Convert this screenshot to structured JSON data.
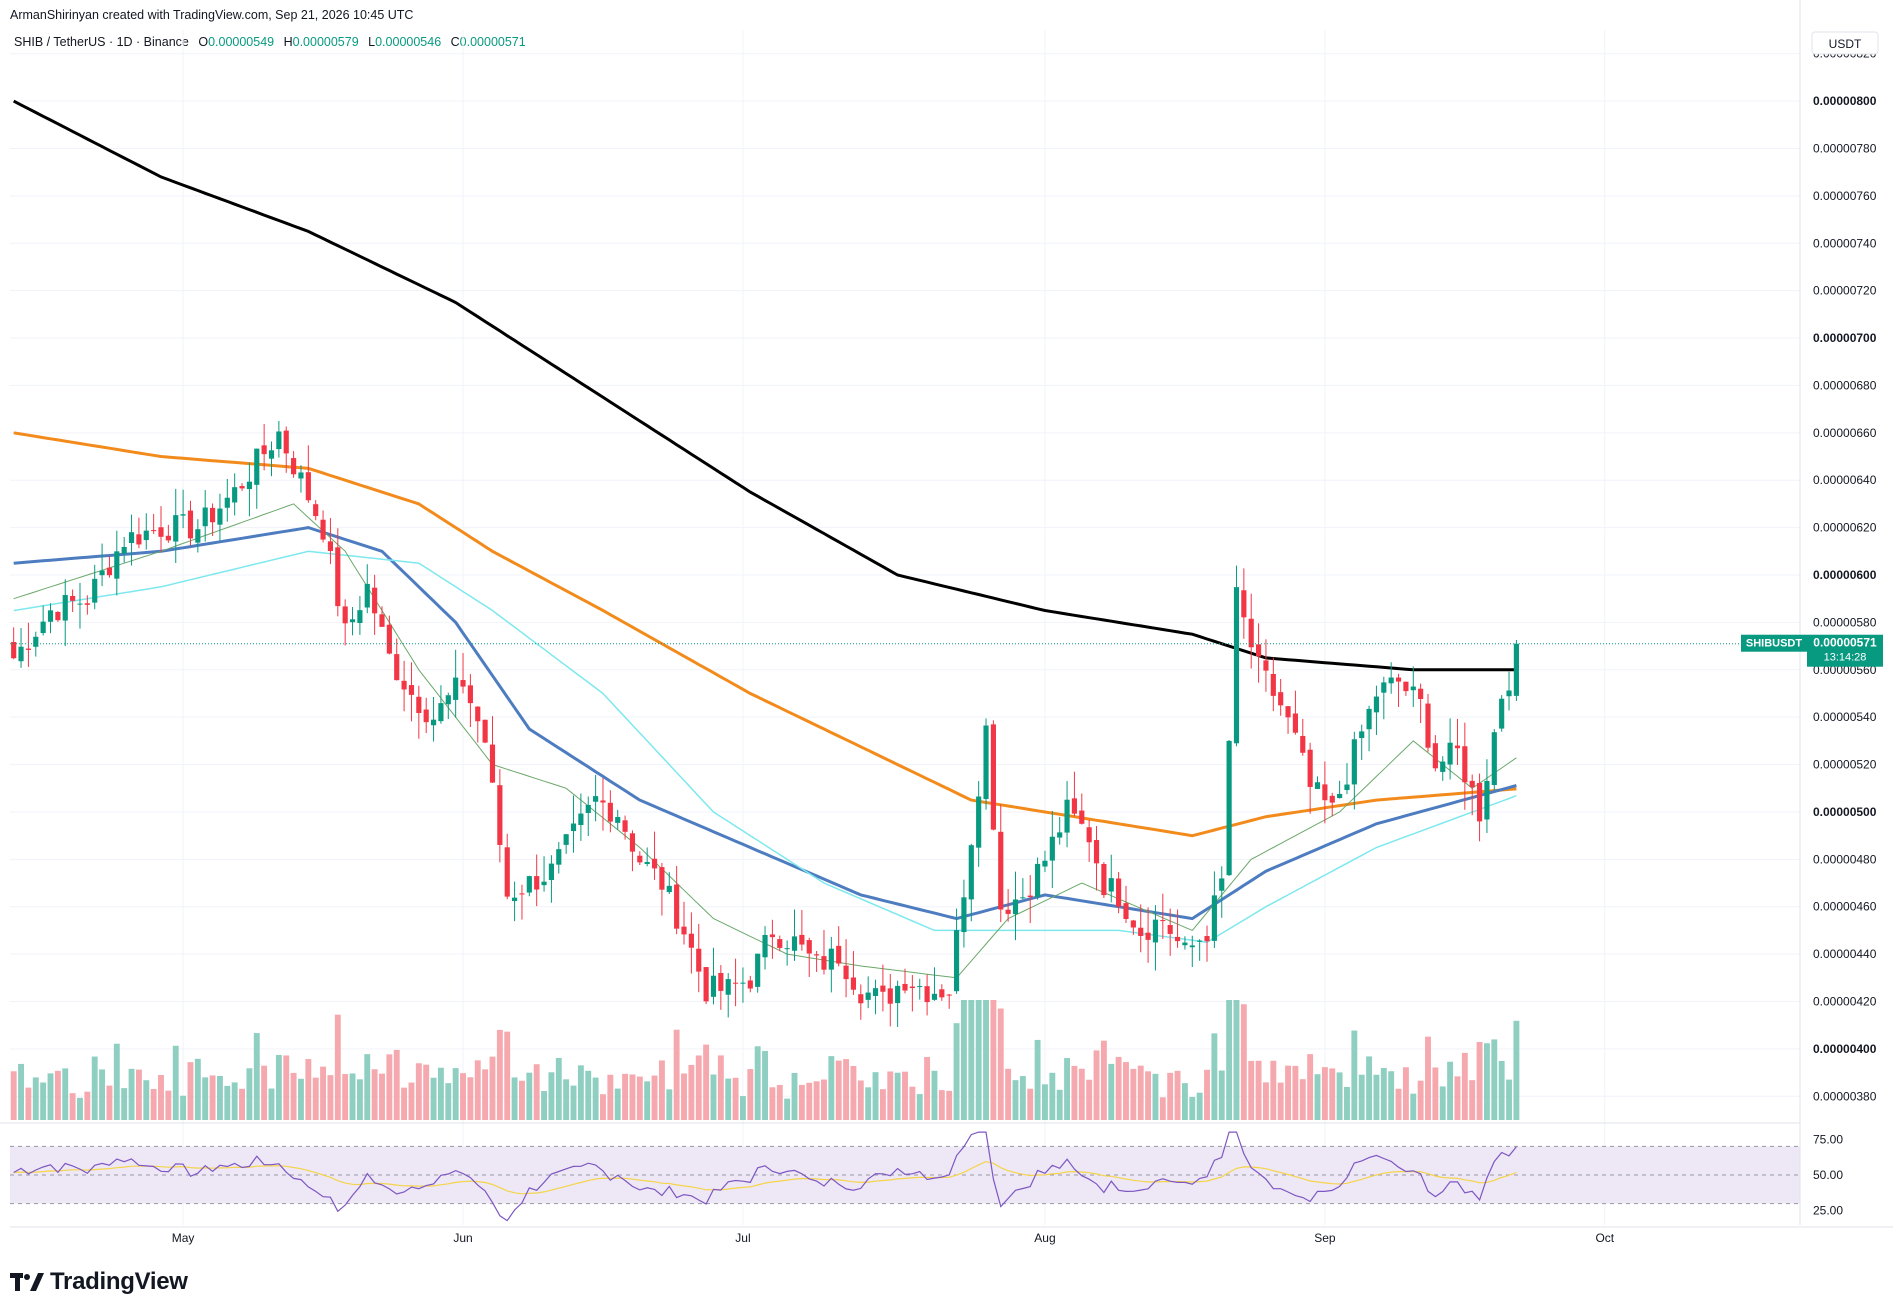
{
  "header": {
    "author_line": "ArmanShirinyan created with TradingView.com, Sep 21, 2026 10:45 UTC",
    "symbol_line": "SHIB / TetherUS · 1D · Binance",
    "ohlc": [
      {
        "key": "O",
        "value": "0.00000549"
      },
      {
        "key": "H",
        "value": "0.00000579"
      },
      {
        "key": "L",
        "value": "0.00000546"
      },
      {
        "key": "C",
        "value": "0.00000571"
      }
    ]
  },
  "currency_badge": "USDT",
  "price_label": {
    "symbol": "SHIBUSDT",
    "price": "0.00000571",
    "countdown": "13:14:28"
  },
  "brand": {
    "name": "TradingView"
  },
  "colors": {
    "up": "#089981",
    "down": "#f23645",
    "volume_up": "#8fcfc1",
    "volume_down": "#f5a8ae",
    "ma_black": "#000000",
    "ma_orange": "#f28b1c",
    "ma_blue": "#4d7cc0",
    "ma_cyan": "#7de8ee",
    "ma_green": "#6aa86a",
    "rsi_line": "#7e57c2",
    "rsi_ma": "#f5d44a",
    "rsi_band": "#ede7f6"
  },
  "chart_data": {
    "type": "candlestick",
    "y_axis": {
      "min": 3.7e-06,
      "max": 8.3e-06,
      "ticks": [
        "0.00000820",
        "0.00000800",
        "0.00000780",
        "0.00000760",
        "0.00000740",
        "0.00000720",
        "0.00000700",
        "0.00000680",
        "0.00000660",
        "0.00000640",
        "0.00000620",
        "0.00000600",
        "0.00000580",
        "0.00000560",
        "0.00000540",
        "0.00000520",
        "0.00000500",
        "0.00000480",
        "0.00000460",
        "0.00000440",
        "0.00000420",
        "0.00000400",
        "0.00000380"
      ],
      "bold_ticks": [
        "0.00000800",
        "0.00000700",
        "0.00000600",
        "0.00000500",
        "0.00000400"
      ]
    },
    "x_axis": {
      "labels": [
        {
          "label": "May",
          "bar": 23
        },
        {
          "label": "Jun",
          "bar": 61
        },
        {
          "label": "Jul",
          "bar": 99
        },
        {
          "label": "Aug",
          "bar": 140
        },
        {
          "label": "Sep",
          "bar": 178
        },
        {
          "label": "Oct",
          "bar": 216
        }
      ],
      "total_bars": 243,
      "candle_count": 205
    },
    "current_price": 5.71e-06,
    "price_anchors": [
      [
        0,
        5.65
      ],
      [
        5,
        5.85
      ],
      [
        10,
        5.9
      ],
      [
        15,
        6.15
      ],
      [
        20,
        6.2
      ],
      [
        25,
        6.2
      ],
      [
        30,
        6.35
      ],
      [
        36,
        6.6
      ],
      [
        39,
        6.4
      ],
      [
        42,
        6.2
      ],
      [
        45,
        5.75
      ],
      [
        48,
        5.95
      ],
      [
        51,
        5.65
      ],
      [
        54,
        5.5
      ],
      [
        57,
        5.4
      ],
      [
        61,
        5.55
      ],
      [
        64,
        5.3
      ],
      [
        67,
        4.65
      ],
      [
        70,
        4.7
      ],
      [
        73,
        4.75
      ],
      [
        76,
        4.9
      ],
      [
        79,
        5.05
      ],
      [
        82,
        5.0
      ],
      [
        85,
        4.8
      ],
      [
        88,
        4.7
      ],
      [
        91,
        4.5
      ],
      [
        94,
        4.25
      ],
      [
        97,
        4.25
      ],
      [
        100,
        4.3
      ],
      [
        103,
        4.5
      ],
      [
        106,
        4.45
      ],
      [
        109,
        4.35
      ],
      [
        112,
        4.4
      ],
      [
        115,
        4.25
      ],
      [
        118,
        4.2
      ],
      [
        121,
        4.3
      ],
      [
        124,
        4.25
      ],
      [
        127,
        4.25
      ],
      [
        130,
        4.9
      ],
      [
        132,
        5.35
      ],
      [
        134,
        4.6
      ],
      [
        137,
        4.65
      ],
      [
        140,
        4.8
      ],
      [
        143,
        5.0
      ],
      [
        146,
        4.9
      ],
      [
        148,
        4.7
      ],
      [
        150,
        4.65
      ],
      [
        153,
        4.5
      ],
      [
        156,
        4.55
      ],
      [
        159,
        4.4
      ],
      [
        162,
        4.5
      ],
      [
        164,
        4.7
      ],
      [
        166,
        5.9
      ],
      [
        169,
        5.6
      ],
      [
        172,
        5.45
      ],
      [
        174,
        5.3
      ],
      [
        176,
        5.1
      ],
      [
        179,
        5.0
      ],
      [
        182,
        5.25
      ],
      [
        185,
        5.5
      ],
      [
        188,
        5.55
      ],
      [
        191,
        5.45
      ],
      [
        193,
        5.2
      ],
      [
        196,
        5.25
      ],
      [
        199,
        5.0
      ],
      [
        202,
        5.5
      ],
      [
        205,
        5.71
      ]
    ],
    "volume_scale": [
      0,
      4100
    ],
    "rsi": {
      "levels": [
        "75.00",
        "50.00",
        "25.00"
      ],
      "min": 15,
      "max": 85,
      "band": [
        70,
        30
      ]
    },
    "moving_averages": [
      {
        "color": "#000000",
        "points": [
          [
            0,
            8.0
          ],
          [
            20,
            7.68
          ],
          [
            40,
            7.45
          ],
          [
            60,
            7.15
          ],
          [
            80,
            6.75
          ],
          [
            100,
            6.35
          ],
          [
            120,
            6.0
          ],
          [
            140,
            5.85
          ],
          [
            160,
            5.75
          ],
          [
            170,
            5.65
          ],
          [
            190,
            5.6
          ],
          [
            205,
            5.6
          ]
        ]
      },
      {
        "color": "#f28b1c",
        "points": [
          [
            0,
            6.6
          ],
          [
            20,
            6.5
          ],
          [
            40,
            6.45
          ],
          [
            55,
            6.3
          ],
          [
            65,
            6.1
          ],
          [
            80,
            5.85
          ],
          [
            100,
            5.5
          ],
          [
            120,
            5.2
          ],
          [
            130,
            5.05
          ],
          [
            140,
            5.0
          ],
          [
            150,
            4.95
          ],
          [
            160,
            4.9
          ],
          [
            170,
            4.98
          ],
          [
            185,
            5.05
          ],
          [
            205,
            5.1
          ]
        ]
      },
      {
        "color": "#4d7cc0",
        "points": [
          [
            0,
            6.05
          ],
          [
            20,
            6.1
          ],
          [
            40,
            6.2
          ],
          [
            50,
            6.1
          ],
          [
            60,
            5.8
          ],
          [
            70,
            5.35
          ],
          [
            85,
            5.05
          ],
          [
            100,
            4.85
          ],
          [
            115,
            4.65
          ],
          [
            128,
            4.55
          ],
          [
            140,
            4.65
          ],
          [
            150,
            4.6
          ],
          [
            160,
            4.55
          ],
          [
            170,
            4.75
          ],
          [
            185,
            4.95
          ],
          [
            205,
            5.12
          ]
        ]
      },
      {
        "color": "#7de8ee",
        "points": [
          [
            0,
            5.85
          ],
          [
            20,
            5.95
          ],
          [
            40,
            6.1
          ],
          [
            55,
            6.05
          ],
          [
            65,
            5.85
          ],
          [
            80,
            5.5
          ],
          [
            95,
            5.0
          ],
          [
            110,
            4.7
          ],
          [
            125,
            4.5
          ],
          [
            135,
            4.5
          ],
          [
            150,
            4.5
          ],
          [
            162,
            4.45
          ],
          [
            170,
            4.6
          ],
          [
            185,
            4.85
          ],
          [
            205,
            5.08
          ]
        ]
      },
      {
        "color": "#6aa86a",
        "points": [
          [
            0,
            5.9
          ],
          [
            20,
            6.1
          ],
          [
            38,
            6.3
          ],
          [
            45,
            6.1
          ],
          [
            55,
            5.6
          ],
          [
            65,
            5.2
          ],
          [
            75,
            5.1
          ],
          [
            85,
            4.85
          ],
          [
            95,
            4.55
          ],
          [
            105,
            4.4
          ],
          [
            115,
            4.35
          ],
          [
            128,
            4.3
          ],
          [
            135,
            4.55
          ],
          [
            145,
            4.7
          ],
          [
            160,
            4.5
          ],
          [
            168,
            4.8
          ],
          [
            180,
            5.0
          ],
          [
            190,
            5.3
          ],
          [
            198,
            5.1
          ],
          [
            205,
            5.25
          ]
        ]
      }
    ]
  }
}
